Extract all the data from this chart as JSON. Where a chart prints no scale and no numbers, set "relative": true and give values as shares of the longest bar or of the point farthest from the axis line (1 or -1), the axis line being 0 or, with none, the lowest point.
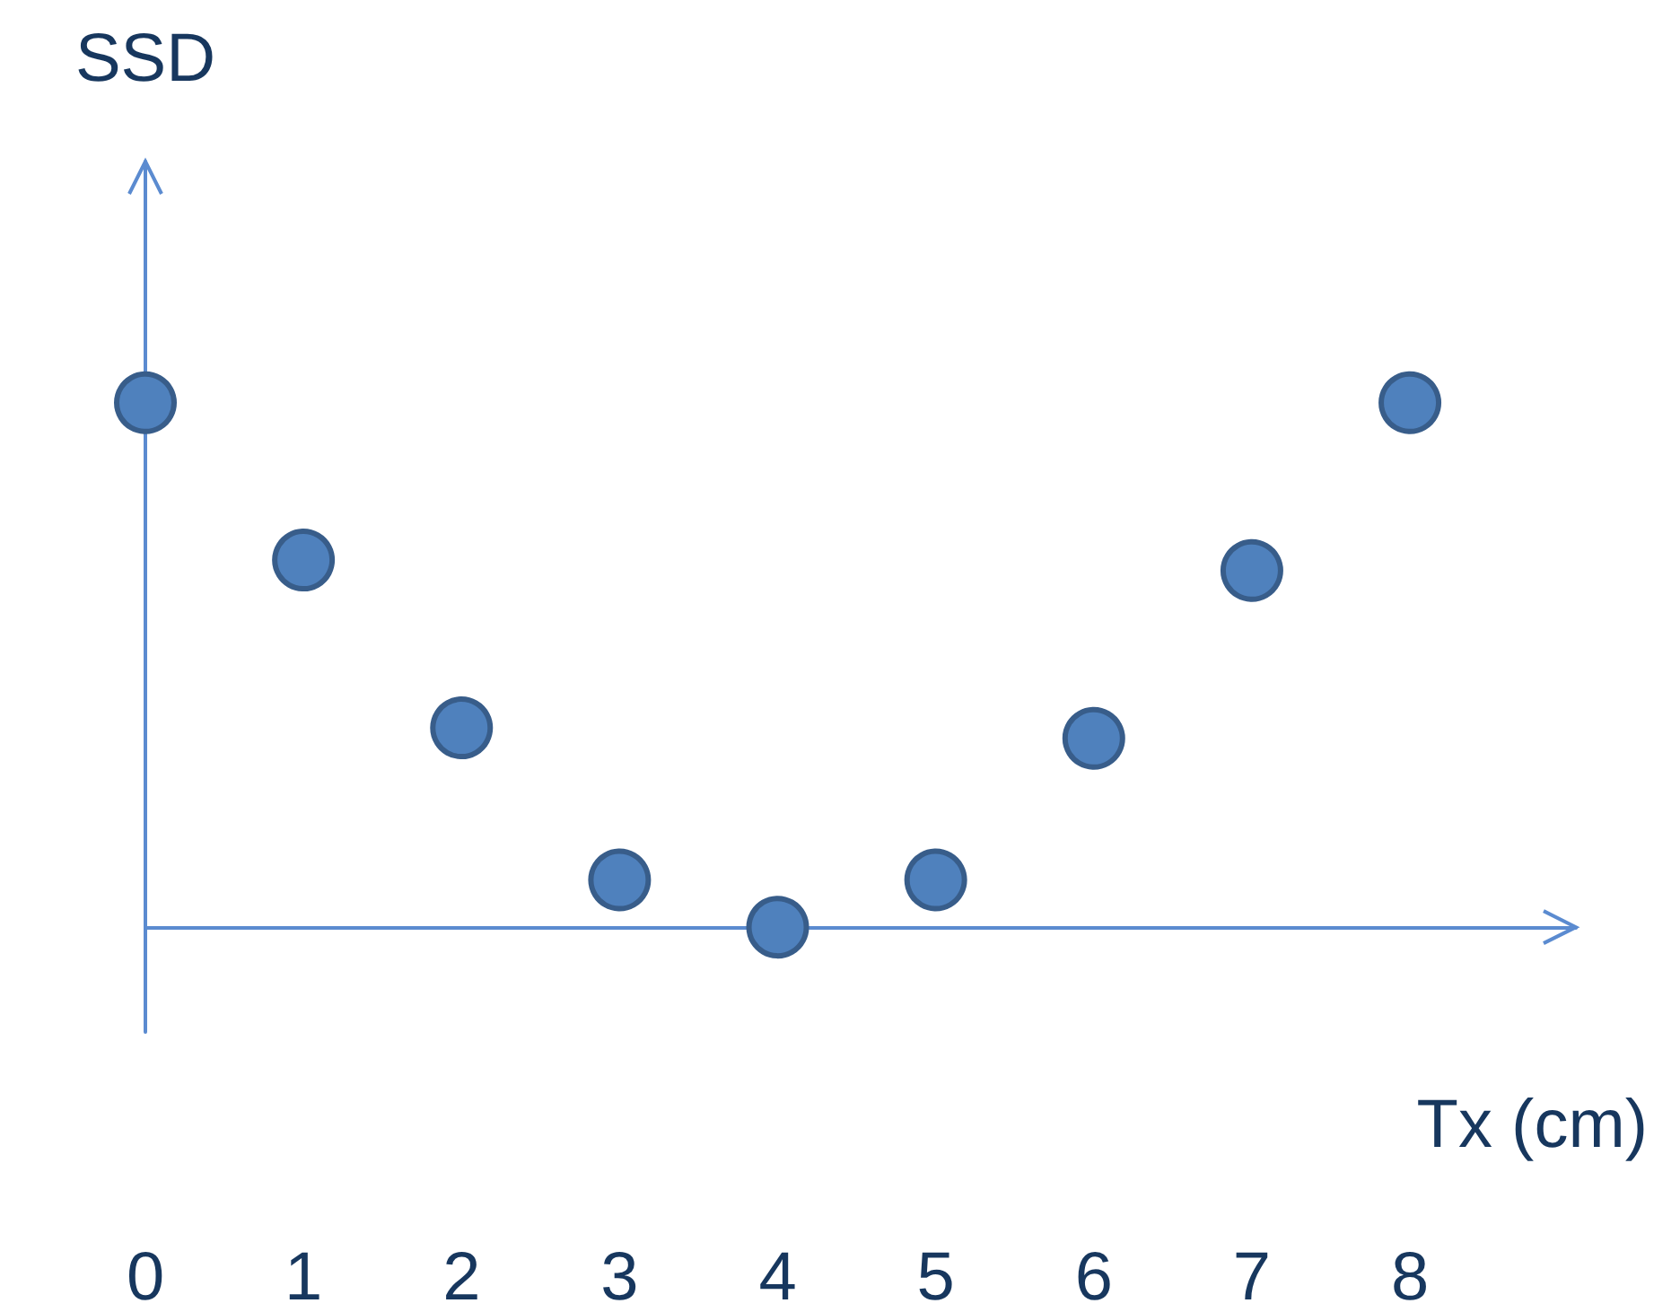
{
  "chart_data": {
    "type": "scatter",
    "ylabel": "SSD",
    "xlabel": "Tx (cm)",
    "relative": true,
    "marker": "circle",
    "categories": [
      "0",
      "1",
      "2",
      "3",
      "4",
      "5",
      "6",
      "7",
      "8"
    ],
    "series": [
      {
        "color": "#4f81bd",
        "values": [
          1,
          0.7,
          0.38,
          0.09,
          0,
          0.09,
          0.36,
          0.68,
          1
        ]
      }
    ]
  }
}
